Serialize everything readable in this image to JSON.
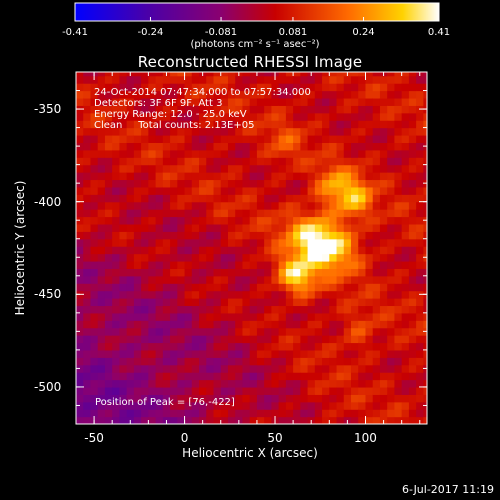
{
  "chart_data": {
    "type": "heatmap",
    "title": "Reconstructed RHESSI Image",
    "xlabel": "Heliocentric X (arcsec)",
    "ylabel": "Heliocentric Y (arcsec)",
    "xlim": [
      -60,
      134
    ],
    "ylim": [
      -520,
      -330
    ],
    "x_ticks": [
      "-50",
      "0",
      "50",
      "100"
    ],
    "x_tick_values": [
      -50,
      0,
      50,
      100
    ],
    "y_ticks": [
      "-350",
      "-400",
      "-450",
      "-500"
    ],
    "y_tick_values": [
      -350,
      -400,
      -450,
      -500
    ],
    "colorbar": {
      "ticks": [
        "-0.41",
        "-0.24",
        "-0.081",
        "0.081",
        "0.24",
        "0.41"
      ],
      "tick_values": [
        -0.41,
        -0.24,
        -0.081,
        0.081,
        0.24,
        0.41
      ],
      "unit": "(photons cm⁻² s⁻¹ asec⁻²)",
      "range": [
        -0.41,
        0.41
      ]
    },
    "annotations": {
      "time_range": "24-Oct-2014 07:47:34.000 to 07:57:34.000",
      "detectors": "Detectors: 3F 6F 9F, Att 3",
      "energy": "Energy Range: 12.0 - 25.0 keV",
      "clean": "Clean     Total counts: 2.13E+05",
      "peak": "Position of Peak = [76,-422]"
    },
    "sources": [
      {
        "x": 76,
        "y": -422,
        "peak": 0.41
      },
      {
        "x": 62,
        "y": -440,
        "peak": 0.3
      },
      {
        "x": 94,
        "y": -398,
        "peak": 0.22
      },
      {
        "x": 82,
        "y": -392,
        "peak": 0.18
      },
      {
        "x": 96,
        "y": -470,
        "peak": 0.1
      },
      {
        "x": 55,
        "y": -368,
        "peak": 0.09
      }
    ]
  },
  "footer": "6-Jul-2017 11:19"
}
